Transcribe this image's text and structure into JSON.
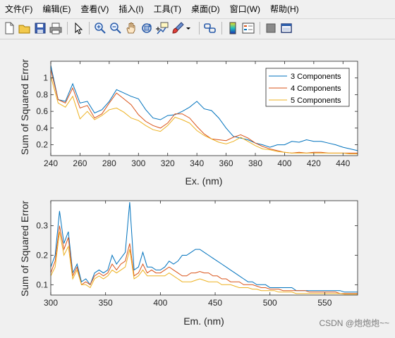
{
  "menubar": {
    "items": [
      "文件(F)",
      "编辑(E)",
      "查看(V)",
      "插入(I)",
      "工具(T)",
      "桌面(D)",
      "窗口(W)",
      "帮助(H)"
    ]
  },
  "toolbar": {
    "icons": [
      "new-figure-icon",
      "open-file-icon",
      "save-icon",
      "print-icon",
      "edit-plot-icon",
      "zoom-in-icon",
      "zoom-out-icon",
      "pan-icon",
      "rotate-3d-icon",
      "data-cursor-icon",
      "brush-icon",
      "brush-dropdown-icon",
      "link-plot-icon",
      "colorbar-icon",
      "legend-icon",
      "hide-plot-tools-icon",
      "show-plot-tools-icon"
    ]
  },
  "colors": {
    "series1": "#0072BD",
    "series2": "#D95319",
    "series3": "#EDB120"
  },
  "chart_data": [
    {
      "type": "line",
      "title": "",
      "xlabel": "Ex. (nm)",
      "ylabel": "Sum of Squared Error",
      "xlim": [
        240,
        450
      ],
      "ylim": [
        0.07,
        1.2
      ],
      "xticks": [
        240,
        260,
        280,
        300,
        320,
        340,
        360,
        380,
        400,
        420,
        440
      ],
      "yticks": [
        0.2,
        0.4,
        0.6,
        0.8,
        1
      ],
      "ytick_labels": [
        "0.2",
        "0.4",
        "0.6",
        "0.8",
        "1"
      ],
      "grid": false,
      "legend": "top-right",
      "x": [
        240,
        245,
        250,
        255,
        260,
        265,
        270,
        275,
        280,
        285,
        290,
        295,
        300,
        305,
        310,
        315,
        320,
        325,
        330,
        335,
        340,
        345,
        350,
        355,
        360,
        365,
        370,
        375,
        380,
        385,
        390,
        395,
        400,
        405,
        410,
        415,
        420,
        425,
        430,
        435,
        440,
        445,
        450
      ],
      "series": [
        {
          "name": "3 Components",
          "values": [
            1.15,
            0.74,
            0.72,
            0.93,
            0.7,
            0.72,
            0.58,
            0.62,
            0.72,
            0.86,
            0.82,
            0.78,
            0.75,
            0.62,
            0.52,
            0.5,
            0.55,
            0.56,
            0.6,
            0.65,
            0.72,
            0.63,
            0.61,
            0.52,
            0.4,
            0.3,
            0.28,
            0.26,
            0.22,
            0.2,
            0.17,
            0.2,
            0.2,
            0.24,
            0.23,
            0.26,
            0.24,
            0.24,
            0.22,
            0.2,
            0.17,
            0.15,
            0.13
          ]
        },
        {
          "name": "4 Components",
          "values": [
            1.1,
            0.74,
            0.7,
            0.88,
            0.64,
            0.67,
            0.52,
            0.57,
            0.7,
            0.82,
            0.75,
            0.68,
            0.56,
            0.48,
            0.43,
            0.4,
            0.46,
            0.57,
            0.57,
            0.52,
            0.42,
            0.33,
            0.27,
            0.26,
            0.25,
            0.29,
            0.32,
            0.28,
            0.22,
            0.18,
            0.15,
            0.13,
            0.11,
            0.1,
            0.11,
            0.1,
            0.11,
            0.11,
            0.1,
            0.1,
            0.1,
            0.1,
            0.1
          ]
        },
        {
          "name": "5 Components",
          "values": [
            1.02,
            0.7,
            0.65,
            0.78,
            0.51,
            0.6,
            0.5,
            0.55,
            0.62,
            0.64,
            0.59,
            0.52,
            0.49,
            0.43,
            0.38,
            0.36,
            0.43,
            0.53,
            0.5,
            0.46,
            0.37,
            0.31,
            0.27,
            0.23,
            0.21,
            0.24,
            0.29,
            0.24,
            0.19,
            0.15,
            0.14,
            0.12,
            0.11,
            0.1,
            0.1,
            0.1,
            0.1,
            0.1,
            0.1,
            0.1,
            0.1,
            0.09,
            0.09
          ]
        }
      ]
    },
    {
      "type": "line",
      "title": "",
      "xlabel": "Em. (nm)",
      "ylabel": "Sum of Squared Error",
      "xlim": [
        300,
        580
      ],
      "ylim": [
        0.065,
        0.385
      ],
      "xticks": [
        300,
        350,
        400,
        450,
        500,
        550
      ],
      "yticks": [
        0.1,
        0.2,
        0.3
      ],
      "ytick_labels": [
        "0.1",
        "0.2",
        "0.3"
      ],
      "grid": false,
      "legend": "none",
      "x": [
        300,
        304,
        308,
        312,
        316,
        320,
        324,
        328,
        332,
        336,
        340,
        344,
        348,
        352,
        356,
        360,
        364,
        368,
        372,
        376,
        380,
        384,
        388,
        392,
        396,
        400,
        404,
        408,
        412,
        416,
        420,
        424,
        428,
        432,
        436,
        440,
        444,
        448,
        452,
        456,
        460,
        464,
        468,
        472,
        476,
        480,
        484,
        488,
        492,
        496,
        500,
        504,
        508,
        512,
        516,
        520,
        524,
        528,
        532,
        536,
        540,
        544,
        548,
        552,
        556,
        560,
        564,
        568,
        572,
        576,
        580
      ],
      "series": [
        {
          "name": "3 Components",
          "values": [
            0.16,
            0.2,
            0.35,
            0.24,
            0.28,
            0.14,
            0.17,
            0.11,
            0.12,
            0.1,
            0.14,
            0.15,
            0.14,
            0.15,
            0.2,
            0.17,
            0.19,
            0.21,
            0.38,
            0.15,
            0.16,
            0.21,
            0.16,
            0.16,
            0.15,
            0.15,
            0.16,
            0.18,
            0.17,
            0.18,
            0.2,
            0.2,
            0.21,
            0.22,
            0.22,
            0.21,
            0.2,
            0.19,
            0.18,
            0.17,
            0.16,
            0.15,
            0.14,
            0.13,
            0.12,
            0.11,
            0.11,
            0.1,
            0.1,
            0.1,
            0.09,
            0.09,
            0.09,
            0.09,
            0.09,
            0.09,
            0.08,
            0.08,
            0.08,
            0.08,
            0.08,
            0.08,
            0.08,
            0.08,
            0.08,
            0.08,
            0.08,
            0.075,
            0.075,
            0.075,
            0.075
          ]
        },
        {
          "name": "4 Components",
          "values": [
            0.14,
            0.18,
            0.3,
            0.22,
            0.26,
            0.13,
            0.16,
            0.1,
            0.11,
            0.1,
            0.13,
            0.14,
            0.13,
            0.14,
            0.17,
            0.15,
            0.17,
            0.18,
            0.24,
            0.13,
            0.14,
            0.17,
            0.14,
            0.15,
            0.14,
            0.14,
            0.15,
            0.16,
            0.15,
            0.14,
            0.13,
            0.13,
            0.14,
            0.14,
            0.145,
            0.14,
            0.14,
            0.13,
            0.13,
            0.12,
            0.12,
            0.11,
            0.11,
            0.11,
            0.1,
            0.1,
            0.1,
            0.095,
            0.09,
            0.09,
            0.085,
            0.085,
            0.085,
            0.08,
            0.08,
            0.08,
            0.08,
            0.08,
            0.08,
            0.075,
            0.075,
            0.075,
            0.075,
            0.075,
            0.075,
            0.075,
            0.07,
            0.07,
            0.07,
            0.07,
            0.07
          ]
        },
        {
          "name": "5 Components",
          "values": [
            0.13,
            0.16,
            0.28,
            0.2,
            0.23,
            0.12,
            0.15,
            0.1,
            0.1,
            0.09,
            0.12,
            0.13,
            0.12,
            0.13,
            0.15,
            0.14,
            0.15,
            0.16,
            0.22,
            0.12,
            0.13,
            0.15,
            0.13,
            0.13,
            0.13,
            0.13,
            0.13,
            0.14,
            0.13,
            0.12,
            0.11,
            0.11,
            0.11,
            0.115,
            0.12,
            0.115,
            0.11,
            0.11,
            0.11,
            0.1,
            0.1,
            0.1,
            0.095,
            0.09,
            0.09,
            0.09,
            0.085,
            0.085,
            0.08,
            0.08,
            0.08,
            0.08,
            0.075,
            0.075,
            0.075,
            0.075,
            0.07,
            0.07,
            0.07,
            0.07,
            0.07,
            0.07,
            0.07,
            0.07,
            0.07,
            0.07,
            0.07,
            0.068,
            0.068,
            0.068,
            0.068
          ]
        }
      ]
    }
  ],
  "watermark": "CSDN @炮炮炮~~"
}
